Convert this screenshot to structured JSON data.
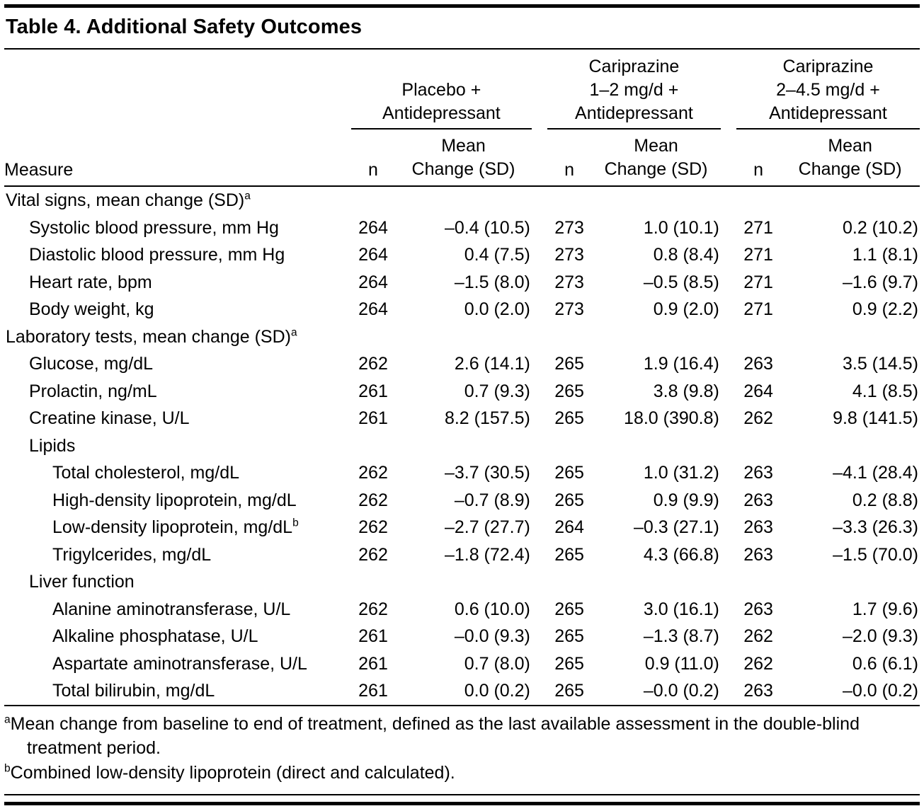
{
  "page": {
    "title": "Table 4. Additional Safety Outcomes"
  },
  "table": {
    "measure_label": "Measure",
    "n_label": "n",
    "mean_label": "Mean\nChange (SD)",
    "groups": [
      {
        "label": "Placebo +\nAntidepressant"
      },
      {
        "label": "Cariprazine\n1–2 mg/d +\nAntidepressant"
      },
      {
        "label": "Cariprazine\n2–4.5 mg/d +\nAntidepressant"
      }
    ],
    "rows": [
      {
        "type": "section",
        "indent": 0,
        "label": "Vital signs, mean change (SD)",
        "marker": "a"
      },
      {
        "type": "data",
        "indent": 1,
        "label": "Systolic blood pressure, mm Hg",
        "values": [
          "264",
          "–0.4 (10.5)",
          "273",
          "1.0 (10.1)",
          "271",
          "0.2 (10.2)"
        ]
      },
      {
        "type": "data",
        "indent": 1,
        "label": "Diastolic blood pressure, mm Hg",
        "values": [
          "264",
          "0.4 (7.5)",
          "273",
          "0.8 (8.4)",
          "271",
          "1.1 (8.1)"
        ]
      },
      {
        "type": "data",
        "indent": 1,
        "label": "Heart rate, bpm",
        "values": [
          "264",
          "–1.5 (8.0)",
          "273",
          "–0.5 (8.5)",
          "271",
          "–1.6 (9.7)"
        ]
      },
      {
        "type": "data",
        "indent": 1,
        "label": "Body weight, kg",
        "values": [
          "264",
          "0.0 (2.0)",
          "273",
          "0.9 (2.0)",
          "271",
          "0.9 (2.2)"
        ]
      },
      {
        "type": "section",
        "indent": 0,
        "label": "Laboratory tests, mean change (SD)",
        "marker": "a"
      },
      {
        "type": "data",
        "indent": 1,
        "label": "Glucose, mg/dL",
        "values": [
          "262",
          "2.6 (14.1)",
          "265",
          "1.9 (16.4)",
          "263",
          "3.5 (14.5)"
        ]
      },
      {
        "type": "data",
        "indent": 1,
        "label": "Prolactin, ng/mL",
        "values": [
          "261",
          "0.7 (9.3)",
          "265",
          "3.8 (9.8)",
          "264",
          "4.1 (8.5)"
        ]
      },
      {
        "type": "data",
        "indent": 1,
        "label": "Creatine kinase, U/L",
        "values": [
          "261",
          "8.2 (157.5)",
          "265",
          "18.0 (390.8)",
          "262",
          "9.8 (141.5)"
        ]
      },
      {
        "type": "section",
        "indent": 1,
        "label": "Lipids"
      },
      {
        "type": "data",
        "indent": 2,
        "label": "Total cholesterol, mg/dL",
        "values": [
          "262",
          "–3.7 (30.5)",
          "265",
          "1.0 (31.2)",
          "263",
          "–4.1 (28.4)"
        ]
      },
      {
        "type": "data",
        "indent": 2,
        "label": "High-density lipoprotein, mg/dL",
        "values": [
          "262",
          "–0.7 (8.9)",
          "265",
          "0.9 (9.9)",
          "263",
          "0.2 (8.8)"
        ]
      },
      {
        "type": "data",
        "indent": 2,
        "label": "Low-density lipoprotein, mg/dL",
        "marker": "b",
        "values": [
          "262",
          "–2.7 (27.7)",
          "264",
          "–0.3 (27.1)",
          "263",
          "–3.3 (26.3)"
        ]
      },
      {
        "type": "data",
        "indent": 2,
        "label": "Trigylcerides, mg/dL",
        "values": [
          "262",
          "–1.8 (72.4)",
          "265",
          "4.3 (66.8)",
          "263",
          "–1.5 (70.0)"
        ]
      },
      {
        "type": "section",
        "indent": 1,
        "label": "Liver function"
      },
      {
        "type": "data",
        "indent": 2,
        "label": "Alanine aminotransferase, U/L",
        "values": [
          "262",
          "0.6 (10.0)",
          "265",
          "3.0 (16.1)",
          "263",
          "1.7 (9.6)"
        ]
      },
      {
        "type": "data",
        "indent": 2,
        "label": "Alkaline phosphatase, U/L",
        "values": [
          "261",
          "–0.0 (9.3)",
          "265",
          "–1.3 (8.7)",
          "262",
          "–2.0 (9.3)"
        ]
      },
      {
        "type": "data",
        "indent": 2,
        "label": "Aspartate aminotransferase, U/L",
        "values": [
          "261",
          "0.7 (8.0)",
          "265",
          "0.9 (11.0)",
          "262",
          "0.6 (6.1)"
        ]
      },
      {
        "type": "data",
        "indent": 2,
        "label": "Total bilirubin, mg/dL",
        "values": [
          "261",
          "0.0 (0.2)",
          "265",
          "–0.0 (0.2)",
          "263",
          "–0.0 (0.2)"
        ]
      }
    ],
    "footnotes": [
      {
        "marker": "a",
        "text": "Mean change from baseline to end of treatment, defined as the last available assessment in the double-blind treatment period."
      },
      {
        "marker": "b",
        "text": "Combined low-density lipoprotein (direct and calculated)."
      }
    ]
  }
}
